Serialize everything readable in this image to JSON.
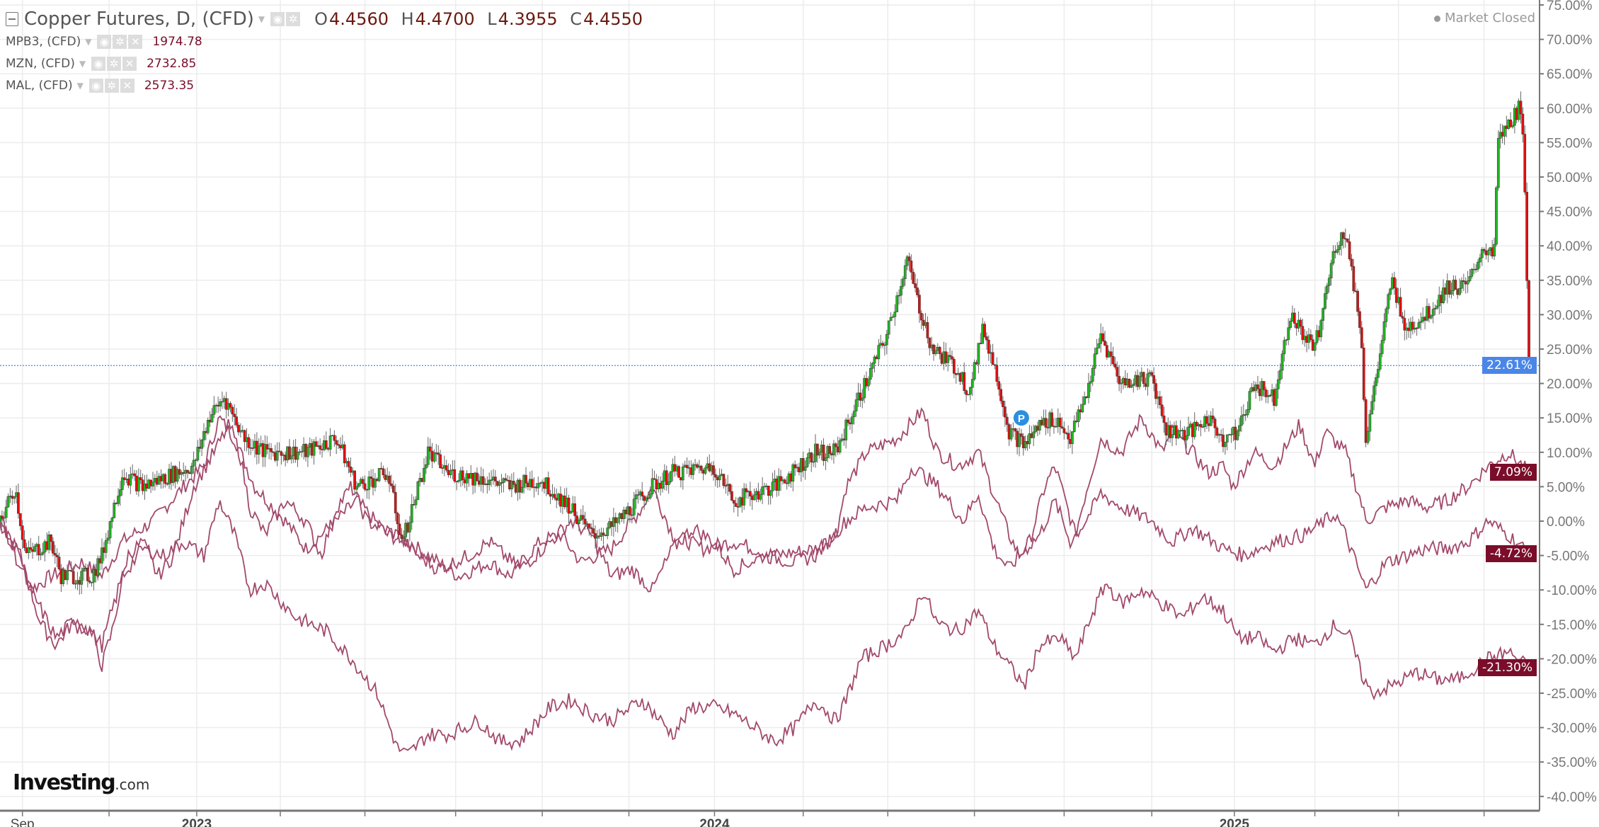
{
  "header": {
    "title": "Copper Futures, D, (CFD)",
    "ohlc": {
      "o_label": "O",
      "o": "4.4560",
      "h_label": "H",
      "h": "4.4700",
      "l_label": "L",
      "l": "4.3955",
      "c_label": "C",
      "c": "4.4550"
    },
    "status": "Market Closed"
  },
  "overlays": [
    {
      "name": "MPB3, (CFD)",
      "value": "1974.78"
    },
    {
      "name": "MZN, (CFD)",
      "value": "2732.85"
    },
    {
      "name": "MAL, (CFD)",
      "value": "2573.35"
    }
  ],
  "icons": {
    "eye": "◉",
    "gear": "✲",
    "close": "✕",
    "arrow": "▼"
  },
  "logo": {
    "main": "Investing",
    "suffix": ".com"
  },
  "colors": {
    "up": "#22b422",
    "down": "#e01010",
    "line": "#a2496b",
    "badge": "#7a0d2a",
    "current": "#4a86e8"
  },
  "chart_data": {
    "type": "candlestick+line",
    "x_unit": "trading-day index (0 ≈ mid Aug 2022)",
    "y_unit": "% change",
    "ylim": [
      -40,
      75
    ],
    "y_ticks": [
      "75.00%",
      "70.00%",
      "65.00%",
      "60.00%",
      "55.00%",
      "50.00%",
      "45.00%",
      "40.00%",
      "35.00%",
      "30.00%",
      "25.00%",
      "20.00%",
      "15.00%",
      "10.00%",
      "5.00%",
      "0.00%",
      "-5.00%",
      "-10.00%",
      "-15.00%",
      "-20.00%",
      "-25.00%",
      "-30.00%",
      "-35.00%",
      "-40.00%"
    ],
    "x_ticks": [
      {
        "day": 11,
        "label": "Sep"
      },
      {
        "day": 96.5,
        "label": "2023"
      },
      {
        "day": 350.5,
        "label": "2024"
      },
      {
        "day": 605.5,
        "label": "2025"
      }
    ],
    "x_gridlines": [
      11,
      53.5,
      96.5,
      137.5,
      179,
      223.5,
      266,
      308.5,
      350.5,
      394,
      435.5,
      478,
      522,
      565,
      605.5,
      645,
      686,
      728
    ],
    "current_value": {
      "label": "22.61%",
      "value": 22.61
    },
    "marker": {
      "label": "P",
      "day": 501,
      "value": 15
    },
    "copper": {
      "name": "Copper Futures",
      "end_label": "22.61%",
      "points": [
        [
          0,
          0
        ],
        [
          7.5,
          5
        ],
        [
          12.5,
          -5
        ],
        [
          25,
          -3
        ],
        [
          30,
          -8
        ],
        [
          45,
          -8
        ],
        [
          50,
          -5
        ],
        [
          60,
          7
        ],
        [
          70,
          5
        ],
        [
          95,
          8
        ],
        [
          102.5,
          15
        ],
        [
          110,
          18
        ],
        [
          120,
          12
        ],
        [
          130,
          10
        ],
        [
          150,
          10
        ],
        [
          165,
          12
        ],
        [
          175,
          5
        ],
        [
          190,
          7
        ],
        [
          197.5,
          -3
        ],
        [
          210,
          10
        ],
        [
          220,
          7
        ],
        [
          240,
          6
        ],
        [
          250,
          5
        ],
        [
          265,
          6
        ],
        [
          280,
          2
        ],
        [
          290,
          -2
        ],
        [
          300,
          -1
        ],
        [
          320,
          5
        ],
        [
          330,
          7
        ],
        [
          350,
          8
        ],
        [
          360,
          3
        ],
        [
          380,
          5
        ],
        [
          400,
          10
        ],
        [
          410,
          10
        ],
        [
          420,
          17
        ],
        [
          435,
          27
        ],
        [
          445,
          38
        ],
        [
          450,
          32
        ],
        [
          457.5,
          25
        ],
        [
          470,
          22
        ],
        [
          475,
          19
        ],
        [
          482.5,
          28
        ],
        [
          490,
          20
        ],
        [
          495,
          13
        ],
        [
          502.5,
          11
        ],
        [
          510,
          14
        ],
        [
          517.5,
          15
        ],
        [
          525,
          12
        ],
        [
          532.5,
          18
        ],
        [
          540,
          27
        ],
        [
          550,
          20
        ],
        [
          565,
          21
        ],
        [
          572.5,
          13
        ],
        [
          585,
          13
        ],
        [
          592.5,
          15
        ],
        [
          600,
          12
        ],
        [
          607.5,
          13
        ],
        [
          615,
          20
        ],
        [
          625,
          18
        ],
        [
          632.5,
          30
        ],
        [
          645,
          25
        ],
        [
          655,
          40
        ],
        [
          660,
          42
        ],
        [
          667.5,
          28
        ],
        [
          670,
          12
        ],
        [
          677.5,
          25
        ],
        [
          682.5,
          35
        ],
        [
          690,
          28
        ],
        [
          700,
          30
        ],
        [
          710,
          34
        ],
        [
          720,
          34
        ],
        [
          727.5,
          40
        ],
        [
          732.5,
          38
        ],
        [
          735,
          55
        ],
        [
          745,
          60
        ],
        [
          747.5,
          55
        ],
        [
          750,
          22.61
        ]
      ]
    },
    "series": [
      {
        "name": "overlay-top",
        "end_label": "7.09%",
        "points": [
          [
            0,
            0
          ],
          [
            10,
            -5
          ],
          [
            15,
            -10
          ],
          [
            25,
            -8
          ],
          [
            40,
            -6
          ],
          [
            50,
            -8
          ],
          [
            60,
            -3
          ],
          [
            75,
            0
          ],
          [
            90,
            5
          ],
          [
            100,
            8
          ],
          [
            107.5,
            15
          ],
          [
            115,
            12
          ],
          [
            125,
            5
          ],
          [
            140,
            0
          ],
          [
            150,
            -4
          ],
          [
            165,
            0
          ],
          [
            175,
            3
          ],
          [
            190,
            -2
          ],
          [
            200,
            -3
          ],
          [
            210,
            -5
          ],
          [
            225,
            -8
          ],
          [
            240,
            -6
          ],
          [
            250,
            -8
          ],
          [
            265,
            -3
          ],
          [
            275,
            -2
          ],
          [
            285,
            -6
          ],
          [
            300,
            -4
          ],
          [
            315,
            2
          ],
          [
            320,
            5
          ],
          [
            330,
            -2
          ],
          [
            345,
            -4
          ],
          [
            360,
            -3
          ],
          [
            380,
            -5
          ],
          [
            400,
            -4
          ],
          [
            410,
            -2
          ],
          [
            415,
            5
          ],
          [
            425,
            10
          ],
          [
            440,
            12
          ],
          [
            452.5,
            16
          ],
          [
            460,
            10
          ],
          [
            470,
            8
          ],
          [
            480,
            10
          ],
          [
            487.5,
            4
          ],
          [
            495,
            -2
          ],
          [
            500,
            -5
          ],
          [
            505,
            -3
          ],
          [
            512.5,
            5
          ],
          [
            517.5,
            8
          ],
          [
            522.5,
            3
          ],
          [
            527.5,
            -2
          ],
          [
            532.5,
            4
          ],
          [
            540,
            12
          ],
          [
            550,
            10
          ],
          [
            560,
            15
          ],
          [
            570,
            10
          ],
          [
            575,
            13
          ],
          [
            585,
            10
          ],
          [
            592.5,
            7
          ],
          [
            600,
            8
          ],
          [
            605,
            5
          ],
          [
            615,
            10
          ],
          [
            625,
            8
          ],
          [
            637.5,
            14
          ],
          [
            645,
            8
          ],
          [
            650,
            13
          ],
          [
            660,
            10
          ],
          [
            667.5,
            3
          ],
          [
            670,
            0
          ],
          [
            680,
            2
          ],
          [
            690,
            3
          ],
          [
            700,
            2
          ],
          [
            710,
            3
          ],
          [
            720,
            5
          ],
          [
            730,
            8
          ],
          [
            740,
            10
          ],
          [
            750,
            7.09
          ]
        ]
      },
      {
        "name": "overlay-middle",
        "end_label": "-4.72%",
        "points": [
          [
            0,
            0
          ],
          [
            10,
            -5
          ],
          [
            20,
            -15
          ],
          [
            27.5,
            -18
          ],
          [
            35,
            -15
          ],
          [
            45,
            -16
          ],
          [
            50,
            -21
          ],
          [
            55,
            -16
          ],
          [
            62.5,
            -5
          ],
          [
            70,
            -3
          ],
          [
            77.5,
            -8
          ],
          [
            85,
            -5
          ],
          [
            95,
            5
          ],
          [
            105,
            10
          ],
          [
            112.5,
            14
          ],
          [
            117.5,
            10
          ],
          [
            122.5,
            2
          ],
          [
            130,
            -2
          ],
          [
            140,
            3
          ],
          [
            150,
            0
          ],
          [
            157.5,
            -5
          ],
          [
            165,
            2
          ],
          [
            172.5,
            5
          ],
          [
            180,
            0
          ],
          [
            195,
            -2
          ],
          [
            205,
            -5
          ],
          [
            215,
            -7
          ],
          [
            230,
            -5
          ],
          [
            240,
            -3
          ],
          [
            255,
            -7
          ],
          [
            270,
            -3
          ],
          [
            280,
            0
          ],
          [
            290,
            -2
          ],
          [
            300,
            -8
          ],
          [
            310,
            -7
          ],
          [
            320,
            -10
          ],
          [
            330,
            -4
          ],
          [
            340,
            -1
          ],
          [
            350,
            -3
          ],
          [
            360,
            -7
          ],
          [
            375,
            -5
          ],
          [
            390,
            -6
          ],
          [
            400,
            -5
          ],
          [
            415,
            0
          ],
          [
            425,
            2
          ],
          [
            440,
            3
          ],
          [
            447.5,
            8
          ],
          [
            460,
            5
          ],
          [
            472.5,
            0
          ],
          [
            480,
            4
          ],
          [
            487.5,
            -4
          ],
          [
            495,
            -7
          ],
          [
            500,
            -5
          ],
          [
            510,
            -2
          ],
          [
            517.5,
            3
          ],
          [
            525,
            -3
          ],
          [
            532.5,
            0
          ],
          [
            540,
            4
          ],
          [
            550,
            2
          ],
          [
            565,
            0
          ],
          [
            575,
            -3
          ],
          [
            585,
            -1
          ],
          [
            600,
            -4
          ],
          [
            610,
            -5
          ],
          [
            625,
            -3
          ],
          [
            640,
            -2
          ],
          [
            655,
            1
          ],
          [
            660,
            -2
          ],
          [
            667.5,
            -8
          ],
          [
            670,
            -10
          ],
          [
            680,
            -6
          ],
          [
            690,
            -5
          ],
          [
            700,
            -4
          ],
          [
            710,
            -4
          ],
          [
            720,
            -3
          ],
          [
            730,
            0
          ],
          [
            740,
            -2
          ],
          [
            750,
            -4.72
          ]
        ]
      },
      {
        "name": "overlay-bottom",
        "end_label": "-21.30%",
        "points": [
          [
            0,
            0
          ],
          [
            7.5,
            -5
          ],
          [
            15,
            -10
          ],
          [
            27.5,
            -17
          ],
          [
            37.5,
            -14
          ],
          [
            50,
            -18
          ],
          [
            60,
            -8
          ],
          [
            70,
            -4
          ],
          [
            80,
            -5
          ],
          [
            90,
            -3
          ],
          [
            100,
            -5
          ],
          [
            107.5,
            3
          ],
          [
            115,
            -2
          ],
          [
            122.5,
            -10
          ],
          [
            130,
            -9
          ],
          [
            145,
            -14
          ],
          [
            160,
            -16
          ],
          [
            172.5,
            -20
          ],
          [
            185,
            -25
          ],
          [
            195,
            -33
          ],
          [
            200,
            -34
          ],
          [
            210,
            -31
          ],
          [
            220,
            -31
          ],
          [
            235,
            -29
          ],
          [
            245,
            -32
          ],
          [
            255,
            -32
          ],
          [
            270,
            -27
          ],
          [
            280,
            -26
          ],
          [
            290,
            -28
          ],
          [
            300,
            -29
          ],
          [
            315,
            -26
          ],
          [
            330,
            -31
          ],
          [
            340,
            -27
          ],
          [
            350,
            -27
          ],
          [
            360,
            -28
          ],
          [
            370,
            -30
          ],
          [
            380,
            -32
          ],
          [
            390,
            -30
          ],
          [
            400,
            -26
          ],
          [
            410,
            -29
          ],
          [
            415,
            -26
          ],
          [
            422.5,
            -20
          ],
          [
            435,
            -18
          ],
          [
            445,
            -16
          ],
          [
            452.5,
            -10
          ],
          [
            460,
            -15
          ],
          [
            470,
            -16
          ],
          [
            480,
            -13
          ],
          [
            487.5,
            -18
          ],
          [
            495,
            -21
          ],
          [
            502.5,
            -24
          ],
          [
            510,
            -18
          ],
          [
            520,
            -17
          ],
          [
            527.5,
            -20
          ],
          [
            535,
            -14
          ],
          [
            542.5,
            -9
          ],
          [
            550,
            -12
          ],
          [
            560,
            -10
          ],
          [
            570,
            -12
          ],
          [
            580,
            -14
          ],
          [
            590,
            -11
          ],
          [
            600,
            -13
          ],
          [
            607.5,
            -17
          ],
          [
            617.5,
            -17
          ],
          [
            625,
            -19
          ],
          [
            635,
            -17
          ],
          [
            645,
            -18
          ],
          [
            655,
            -15
          ],
          [
            662.5,
            -17
          ],
          [
            667.5,
            -22
          ],
          [
            672.5,
            -25
          ],
          [
            682.5,
            -24
          ],
          [
            695,
            -22
          ],
          [
            705,
            -23
          ],
          [
            715,
            -23
          ],
          [
            725,
            -21
          ],
          [
            730,
            -20
          ],
          [
            740,
            -19
          ],
          [
            750,
            -21.3
          ]
        ]
      }
    ]
  }
}
